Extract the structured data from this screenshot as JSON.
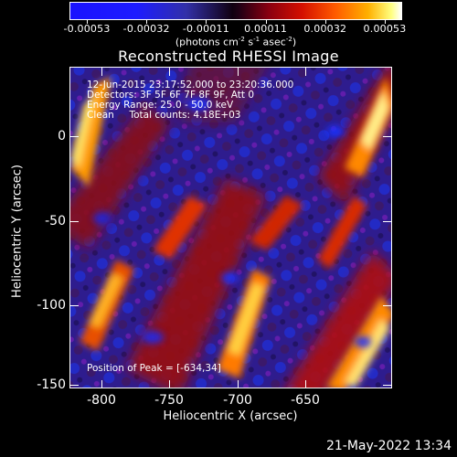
{
  "colorbar": {
    "tick_labels": [
      "-0.00053",
      "-0.00032",
      "-0.00011",
      "0.00011",
      "0.00032",
      "0.00053"
    ],
    "units_text": "(photons cm",
    "units_exp1": "-2",
    "units_mid": " s",
    "units_exp2": "-1",
    "units_mid2": " asec",
    "units_exp3": "-2",
    "units_end": ")",
    "colors": [
      "#1a12ff",
      "#3230a8",
      "#100010",
      "#8a0010",
      "#d40f00",
      "#ff5a00",
      "#ffb000",
      "#ffffff"
    ]
  },
  "plot": {
    "title": "Reconstructed RHESSI Image",
    "info": {
      "time": "12-Jun-2015 23:17:52.000 to 23:20:36.000",
      "detectors": "Detectors: 3F 5F 6F 7F 8F 9F, Att 0",
      "energy": "Energy Range: 25.0 - 50.0 keV",
      "clean": "Clean     Total counts: 4.18E+03"
    },
    "peak_text": "Position of Peak = [-634,34]"
  },
  "axes": {
    "x_title": "Heliocentric X (arcsec)",
    "y_title": "Heliocentric Y (arcsec)",
    "x_ticks": [
      "-800",
      "-750",
      "-700",
      "-650"
    ],
    "y_ticks": [
      "0",
      "-50",
      "-100",
      "-150"
    ]
  },
  "footer": {
    "timestamp": "21-May-2022 13:34"
  }
}
